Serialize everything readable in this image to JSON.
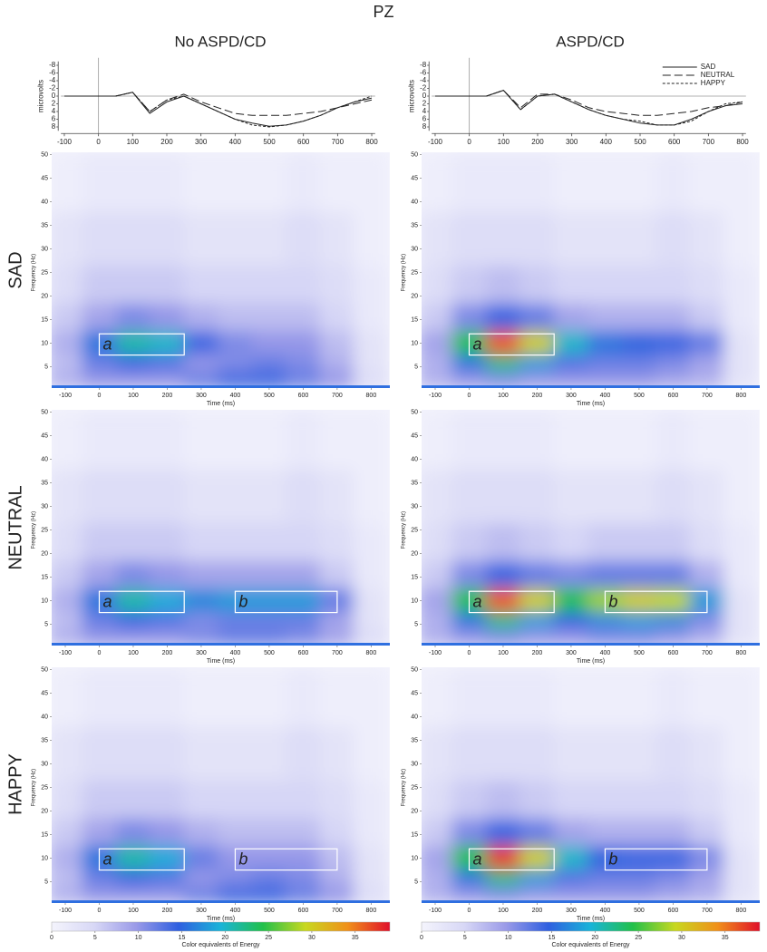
{
  "figure": {
    "title": "PZ",
    "column_titles": [
      "No ASPD/CD",
      "ASPD/CD"
    ],
    "row_titles": [
      "SAD",
      "NEUTRAL",
      "HAPPY"
    ]
  },
  "chart_data": [
    {
      "type": "line",
      "ylabel": "microvolts",
      "x": [
        -100,
        -50,
        0,
        50,
        100,
        150,
        200,
        250,
        300,
        350,
        400,
        450,
        500,
        550,
        600,
        650,
        700,
        750,
        800
      ],
      "xlim": [
        -110,
        810
      ],
      "xticks": [
        -100,
        0,
        100,
        200,
        300,
        400,
        500,
        600,
        700,
        800
      ],
      "ylim": [
        -9,
        9
      ],
      "y_inverted": true,
      "yticks": [
        -8,
        -6,
        -4,
        -2,
        0,
        2,
        4,
        6,
        8
      ],
      "legend": false,
      "series": [
        {
          "name": "SAD",
          "color": "#222222",
          "line_style": "solid",
          "values": [
            0,
            0,
            0,
            0,
            -1,
            4.5,
            1.5,
            0,
            2,
            4,
            6,
            7,
            7.8,
            7.5,
            6.5,
            5,
            3,
            1.5,
            0.5
          ]
        },
        {
          "name": "NEUTRAL",
          "color": "#222222",
          "line_style": "dashed",
          "values": [
            0,
            0,
            0,
            0,
            -1,
            4,
            1,
            -0.5,
            1.5,
            3,
            4.5,
            5,
            5,
            5,
            4.5,
            4,
            3,
            2,
            1
          ]
        },
        {
          "name": "HAPPY",
          "color": "#222222",
          "line_style": "dotted",
          "values": [
            0,
            0,
            0,
            0,
            -1,
            4,
            1,
            0,
            2,
            4,
            6,
            7.5,
            8,
            7.5,
            6.5,
            5,
            3,
            1.5,
            0
          ]
        }
      ]
    },
    {
      "type": "line",
      "ylabel": "microvolts",
      "x": [
        -100,
        -50,
        0,
        50,
        100,
        150,
        200,
        250,
        300,
        350,
        400,
        450,
        500,
        550,
        600,
        650,
        700,
        750,
        800
      ],
      "xlim": [
        -110,
        810
      ],
      "xticks": [
        -100,
        0,
        100,
        200,
        300,
        400,
        500,
        600,
        700,
        800
      ],
      "ylim": [
        -9,
        9
      ],
      "y_inverted": true,
      "yticks": [
        -8,
        -6,
        -4,
        -2,
        0,
        2,
        4,
        6,
        8
      ],
      "legend": "upper right",
      "series": [
        {
          "name": "SAD",
          "color": "#222222",
          "line_style": "solid",
          "values": [
            0,
            0,
            0,
            0,
            -1.5,
            3.5,
            0,
            -0.5,
            1.5,
            3.5,
            5,
            6,
            7,
            7.5,
            7.5,
            6,
            4,
            2.5,
            2
          ]
        },
        {
          "name": "NEUTRAL",
          "color": "#222222",
          "line_style": "dashed",
          "values": [
            0,
            0,
            0,
            0,
            -1.5,
            3,
            -0.5,
            -0.5,
            1,
            3,
            4,
            4.5,
            5,
            5,
            4.5,
            4,
            3,
            2.5,
            1.5
          ]
        },
        {
          "name": "HAPPY",
          "color": "#222222",
          "line_style": "dotted",
          "values": [
            0,
            0,
            0,
            0,
            -1.5,
            3.5,
            0,
            -0.5,
            1.5,
            3.5,
            5,
            6,
            6.5,
            7.5,
            7.5,
            6.5,
            4,
            2,
            1.5
          ]
        }
      ]
    },
    {
      "type": "heatmap",
      "xlabel": "Time (ms)",
      "ylabel": "Frequency (Hz)",
      "x": [
        -100,
        0,
        100,
        200,
        300,
        400,
        500,
        600,
        700,
        800
      ],
      "y": [
        2.5,
        5.5,
        10,
        15.5,
        21.5,
        31.5,
        44.5
      ],
      "xlim": [
        -140,
        855
      ],
      "ylim": [
        0.5,
        50.5
      ],
      "xticks": [
        -100,
        0,
        100,
        200,
        300,
        400,
        500,
        600,
        700,
        800
      ],
      "yticks": [
        5,
        10,
        15,
        20,
        25,
        30,
        35,
        40,
        45,
        50
      ],
      "clim": [
        0,
        39
      ],
      "colormap": [
        "#f4f4fc",
        "#d8d8f6",
        "#9a9ae8",
        "#2f5fe0",
        "#19b4d8",
        "#22c04a",
        "#c8d820",
        "#f0901a",
        "#e0102a"
      ],
      "z": [
        [
          8,
          10,
          10,
          10,
          12,
          14,
          14,
          12,
          10,
          4
        ],
        [
          7,
          12,
          14,
          13,
          10,
          11,
          12,
          11,
          8,
          3
        ],
        [
          8,
          16,
          21,
          20,
          14,
          11,
          10,
          10,
          7,
          3
        ],
        [
          6,
          9,
          11,
          10,
          8,
          7,
          7,
          7,
          5,
          2
        ],
        [
          4,
          6,
          6,
          6,
          5,
          5,
          5,
          5,
          4,
          2
        ],
        [
          3,
          4,
          4,
          4,
          3,
          3,
          3,
          4,
          3,
          1
        ],
        [
          1,
          2,
          2,
          2,
          1,
          1,
          1,
          2,
          1,
          1
        ]
      ],
      "boxes": [
        {
          "label": "a",
          "x": [
            0,
            250
          ],
          "y": [
            7.5,
            12
          ]
        }
      ]
    },
    {
      "type": "heatmap",
      "xlabel": "Time (ms)",
      "ylabel": "Frequency (Hz)",
      "x": [
        -100,
        0,
        100,
        200,
        300,
        400,
        500,
        600,
        700,
        800
      ],
      "y": [
        2.5,
        5.5,
        10,
        15.5,
        21.5,
        31.5,
        44.5
      ],
      "xlim": [
        -140,
        855
      ],
      "ylim": [
        0.5,
        50.5
      ],
      "xticks": [
        -100,
        0,
        100,
        200,
        300,
        400,
        500,
        600,
        700,
        800
      ],
      "yticks": [
        5,
        10,
        15,
        20,
        25,
        30,
        35,
        40,
        45,
        50
      ],
      "clim": [
        0,
        39
      ],
      "colormap": [
        "#f4f4fc",
        "#d8d8f6",
        "#9a9ae8",
        "#2f5fe0",
        "#19b4d8",
        "#22c04a",
        "#c8d820",
        "#f0901a",
        "#e0102a"
      ],
      "z": [
        [
          8,
          10,
          11,
          10,
          10,
          10,
          10,
          9,
          8,
          3
        ],
        [
          8,
          16,
          22,
          18,
          13,
          12,
          12,
          11,
          9,
          3
        ],
        [
          9,
          24,
          36,
          30,
          20,
          16,
          15,
          14,
          12,
          3
        ],
        [
          6,
          11,
          14,
          12,
          9,
          8,
          8,
          8,
          6,
          2
        ],
        [
          4,
          6,
          7,
          6,
          5,
          5,
          5,
          5,
          4,
          2
        ],
        [
          3,
          4,
          4,
          4,
          3,
          3,
          3,
          4,
          3,
          1
        ],
        [
          1,
          2,
          2,
          2,
          1,
          1,
          1,
          2,
          1,
          1
        ]
      ],
      "boxes": [
        {
          "label": "a",
          "x": [
            0,
            250
          ],
          "y": [
            7.5,
            12
          ]
        }
      ]
    },
    {
      "type": "heatmap",
      "xlabel": "Time (ms)",
      "ylabel": "Frequency (Hz)",
      "x": [
        -100,
        0,
        100,
        200,
        300,
        400,
        500,
        600,
        700,
        800
      ],
      "y": [
        2.5,
        5.5,
        10,
        15.5,
        21.5,
        31.5,
        44.5
      ],
      "xlim": [
        -140,
        855
      ],
      "ylim": [
        0.5,
        50.5
      ],
      "xticks": [
        -100,
        0,
        100,
        200,
        300,
        400,
        500,
        600,
        700,
        800
      ],
      "yticks": [
        5,
        10,
        15,
        20,
        25,
        30,
        35,
        40,
        45,
        50
      ],
      "clim": [
        0,
        39
      ],
      "colormap": [
        "#f4f4fc",
        "#d8d8f6",
        "#9a9ae8",
        "#2f5fe0",
        "#19b4d8",
        "#22c04a",
        "#c8d820",
        "#f0901a",
        "#e0102a"
      ],
      "z": [
        [
          8,
          10,
          10,
          10,
          11,
          12,
          12,
          11,
          9,
          4
        ],
        [
          7,
          12,
          14,
          13,
          11,
          12,
          12,
          12,
          9,
          3
        ],
        [
          8,
          16,
          21,
          19,
          17,
          18,
          18,
          18,
          12,
          3
        ],
        [
          6,
          9,
          11,
          10,
          9,
          9,
          9,
          9,
          6,
          2
        ],
        [
          4,
          6,
          6,
          6,
          5,
          5,
          5,
          5,
          4,
          2
        ],
        [
          3,
          4,
          4,
          4,
          3,
          3,
          3,
          4,
          3,
          1
        ],
        [
          1,
          2,
          2,
          2,
          1,
          1,
          1,
          2,
          1,
          1
        ]
      ],
      "boxes": [
        {
          "label": "a",
          "x": [
            0,
            250
          ],
          "y": [
            7.5,
            12
          ]
        },
        {
          "label": "b",
          "x": [
            400,
            700
          ],
          "y": [
            7.5,
            12
          ]
        }
      ]
    },
    {
      "type": "heatmap",
      "xlabel": "Time (ms)",
      "ylabel": "Frequency (Hz)",
      "x": [
        -100,
        0,
        100,
        200,
        300,
        400,
        500,
        600,
        700,
        800
      ],
      "y": [
        2.5,
        5.5,
        10,
        15.5,
        21.5,
        31.5,
        44.5
      ],
      "xlim": [
        -140,
        855
      ],
      "ylim": [
        0.5,
        50.5
      ],
      "xticks": [
        -100,
        0,
        100,
        200,
        300,
        400,
        500,
        600,
        700,
        800
      ],
      "yticks": [
        5,
        10,
        15,
        20,
        25,
        30,
        35,
        40,
        45,
        50
      ],
      "clim": [
        0,
        39
      ],
      "colormap": [
        "#f4f4fc",
        "#d8d8f6",
        "#9a9ae8",
        "#2f5fe0",
        "#19b4d8",
        "#22c04a",
        "#c8d820",
        "#f0901a",
        "#e0102a"
      ],
      "z": [
        [
          8,
          10,
          11,
          10,
          10,
          11,
          11,
          10,
          8,
          3
        ],
        [
          8,
          16,
          22,
          18,
          15,
          17,
          18,
          17,
          11,
          3
        ],
        [
          9,
          24,
          36,
          30,
          24,
          28,
          30,
          29,
          18,
          3
        ],
        [
          6,
          11,
          14,
          12,
          11,
          12,
          12,
          12,
          8,
          2
        ],
        [
          4,
          6,
          7,
          6,
          5,
          6,
          6,
          6,
          4,
          2
        ],
        [
          3,
          4,
          4,
          4,
          3,
          3,
          3,
          4,
          3,
          1
        ],
        [
          1,
          2,
          2,
          2,
          1,
          1,
          1,
          2,
          1,
          1
        ]
      ],
      "boxes": [
        {
          "label": "a",
          "x": [
            0,
            250
          ],
          "y": [
            7.5,
            12
          ]
        },
        {
          "label": "b",
          "x": [
            400,
            700
          ],
          "y": [
            7.5,
            12
          ]
        }
      ]
    },
    {
      "type": "heatmap",
      "xlabel": "Time (ms)",
      "ylabel": "Frequency (Hz)",
      "x": [
        -100,
        0,
        100,
        200,
        300,
        400,
        500,
        600,
        700,
        800
      ],
      "y": [
        2.5,
        5.5,
        10,
        15.5,
        21.5,
        31.5,
        44.5
      ],
      "xlim": [
        -140,
        855
      ],
      "ylim": [
        0.5,
        50.5
      ],
      "xticks": [
        -100,
        0,
        100,
        200,
        300,
        400,
        500,
        600,
        700,
        800
      ],
      "yticks": [
        5,
        10,
        15,
        20,
        25,
        30,
        35,
        40,
        45,
        50
      ],
      "clim": [
        0,
        39
      ],
      "colormap": [
        "#f4f4fc",
        "#d8d8f6",
        "#9a9ae8",
        "#2f5fe0",
        "#19b4d8",
        "#22c04a",
        "#c8d820",
        "#f0901a",
        "#e0102a"
      ],
      "z": [
        [
          8,
          10,
          10,
          10,
          12,
          14,
          14,
          12,
          10,
          4
        ],
        [
          7,
          12,
          14,
          13,
          10,
          11,
          12,
          11,
          8,
          3
        ],
        [
          8,
          16,
          21,
          19,
          12,
          10,
          10,
          10,
          7,
          3
        ],
        [
          6,
          9,
          11,
          10,
          8,
          7,
          7,
          7,
          5,
          2
        ],
        [
          4,
          6,
          6,
          6,
          5,
          5,
          5,
          5,
          4,
          2
        ],
        [
          3,
          4,
          4,
          4,
          3,
          3,
          3,
          4,
          3,
          1
        ],
        [
          1,
          2,
          2,
          2,
          1,
          1,
          1,
          2,
          1,
          1
        ]
      ],
      "boxes": [
        {
          "label": "a",
          "x": [
            0,
            250
          ],
          "y": [
            7.5,
            12
          ]
        },
        {
          "label": "b",
          "x": [
            400,
            700
          ],
          "y": [
            7.5,
            12
          ]
        }
      ],
      "colorbar": {
        "label": "Color equivalents of Energy",
        "ticks": [
          0,
          5,
          10,
          15,
          20,
          25,
          30,
          35
        ]
      }
    },
    {
      "type": "heatmap",
      "xlabel": "Time (ms)",
      "ylabel": "Frequency (Hz)",
      "x": [
        -100,
        0,
        100,
        200,
        300,
        400,
        500,
        600,
        700,
        800
      ],
      "y": [
        2.5,
        5.5,
        10,
        15.5,
        21.5,
        31.5,
        44.5
      ],
      "xlim": [
        -140,
        855
      ],
      "ylim": [
        0.5,
        50.5
      ],
      "xticks": [
        -100,
        0,
        100,
        200,
        300,
        400,
        500,
        600,
        700,
        800
      ],
      "yticks": [
        5,
        10,
        15,
        20,
        25,
        30,
        35,
        40,
        45,
        50
      ],
      "clim": [
        0,
        39
      ],
      "colormap": [
        "#f4f4fc",
        "#d8d8f6",
        "#9a9ae8",
        "#2f5fe0",
        "#19b4d8",
        "#22c04a",
        "#c8d820",
        "#f0901a",
        "#e0102a"
      ],
      "z": [
        [
          8,
          10,
          11,
          10,
          10,
          10,
          10,
          9,
          8,
          3
        ],
        [
          8,
          16,
          22,
          18,
          13,
          12,
          12,
          11,
          9,
          3
        ],
        [
          9,
          24,
          37,
          30,
          20,
          15,
          14,
          14,
          11,
          3
        ],
        [
          6,
          11,
          14,
          12,
          9,
          8,
          8,
          8,
          6,
          2
        ],
        [
          4,
          6,
          7,
          6,
          5,
          5,
          5,
          5,
          4,
          2
        ],
        [
          3,
          4,
          4,
          4,
          3,
          3,
          3,
          4,
          3,
          1
        ],
        [
          1,
          2,
          2,
          2,
          1,
          1,
          1,
          2,
          1,
          1
        ]
      ],
      "boxes": [
        {
          "label": "a",
          "x": [
            0,
            250
          ],
          "y": [
            7.5,
            12
          ]
        },
        {
          "label": "b",
          "x": [
            400,
            700
          ],
          "y": [
            7.5,
            12
          ]
        }
      ],
      "colorbar": {
        "label": "Color equivalents of Energy",
        "ticks": [
          0,
          5,
          10,
          15,
          20,
          25,
          30,
          35
        ]
      }
    }
  ]
}
